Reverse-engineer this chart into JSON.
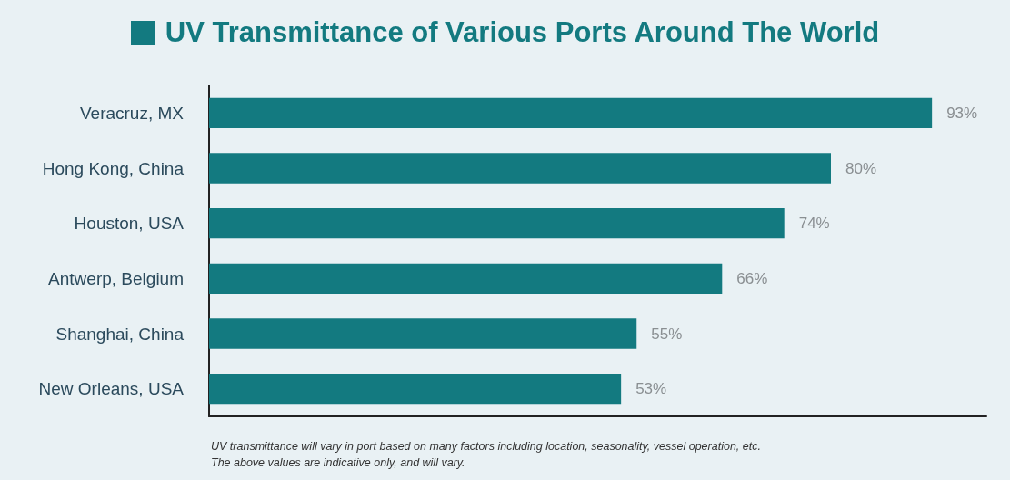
{
  "chart_data": {
    "type": "bar",
    "orientation": "horizontal",
    "title": "UV Transmittance of Various Ports Around The World",
    "categories": [
      "Veracruz, MX",
      "Hong Kong, China",
      "Houston, USA",
      "Antwerp, Belgium",
      "Shanghai, China",
      "New Orleans, USA"
    ],
    "values": [
      93,
      80,
      74,
      66,
      55,
      53
    ],
    "value_labels": [
      "93%",
      "80%",
      "74%",
      "66%",
      "55%",
      "53%"
    ],
    "color": "#137a80",
    "xlim": [
      0,
      100
    ],
    "tick_labels": "y",
    "annotations": [
      "UV transmittance will vary in port based on many factors including location, seasonality, vessel operation, etc.",
      "The above values are indicative only, and will vary."
    ]
  }
}
